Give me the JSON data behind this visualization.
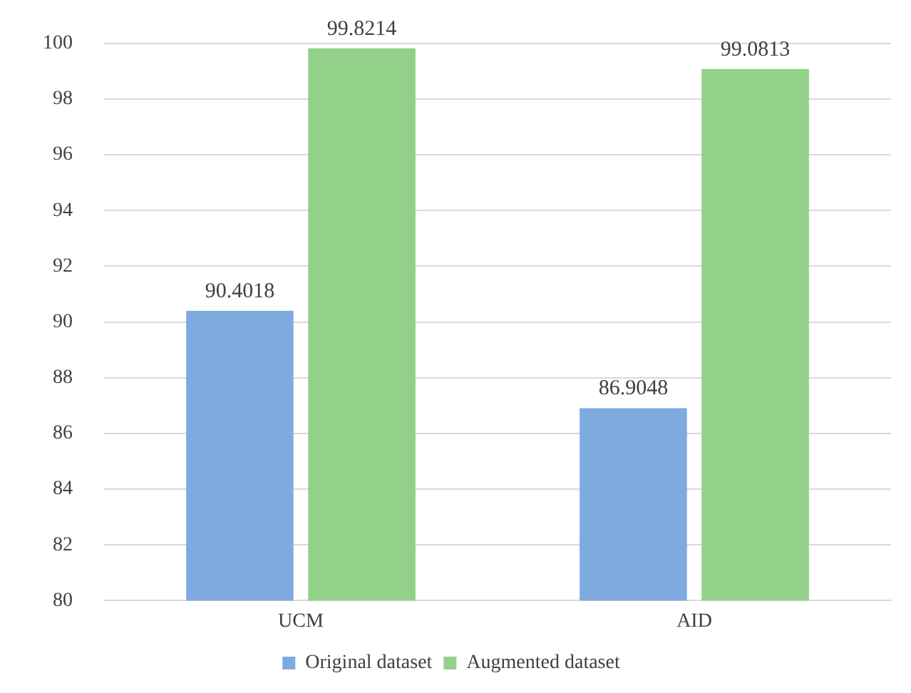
{
  "chart_data": {
    "type": "bar",
    "categories": [
      "UCM",
      "AID"
    ],
    "series": [
      {
        "name": "Original dataset",
        "color": "#7faadf",
        "values": [
          90.4018,
          86.9048
        ]
      },
      {
        "name": "Augmented dataset",
        "color": "#93d18a",
        "values": [
          99.8214,
          99.0813
        ]
      }
    ],
    "ylim": [
      80,
      100
    ],
    "yticks": [
      80,
      82,
      84,
      86,
      88,
      90,
      92,
      94,
      96,
      98,
      100
    ],
    "grid": "y",
    "legend": "bottom",
    "data_labels": true
  }
}
